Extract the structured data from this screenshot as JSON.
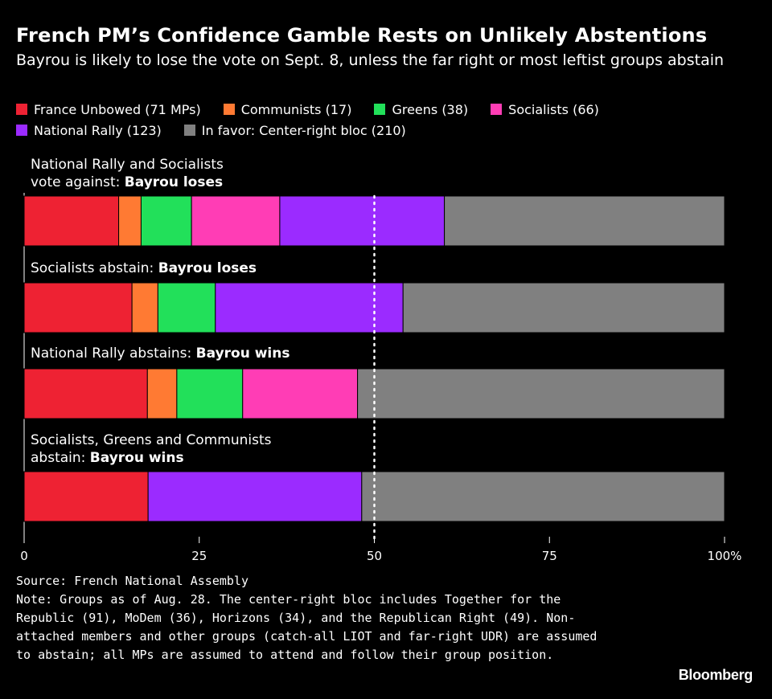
{
  "header": {
    "title": "French PM’s Confidence Gamble Rests on Unlikely Abstentions",
    "subtitle": "Bayrou is likely to lose the vote on Sept. 8, unless the far right or most leftist groups abstain"
  },
  "legend": [
    {
      "label": "France Unbowed (71 MPs)",
      "color": "#ee2233"
    },
    {
      "label": "Communists (17)",
      "color": "#ff7a33"
    },
    {
      "label": "Greens (38)",
      "color": "#22e05a"
    },
    {
      "label": "Socialists (66)",
      "color": "#ff3db5"
    },
    {
      "label": "National Rally (123)",
      "color": "#9b2bff"
    },
    {
      "label": "In favor: Center-right bloc (210)",
      "color": "#808080"
    }
  ],
  "scenarios": [
    {
      "text": "National Rally and Socialists vote against: ",
      "line1": "National Rally and Socialists",
      "line2": "vote against: ",
      "outcome": "Bayrou loses"
    },
    {
      "text": "Socialists abstain: ",
      "outcome": "Bayrou loses"
    },
    {
      "text": "National Rally abstains: ",
      "outcome": "Bayrou wins"
    },
    {
      "line1": "Socialists, Greens and Communists",
      "line2": "abstain: ",
      "outcome": "Bayrou wins"
    }
  ],
  "chart_data": {
    "type": "bar",
    "orientation": "horizontal",
    "stacked": true,
    "unit": "percent",
    "xlim": [
      0,
      100
    ],
    "xticks": [
      "0",
      "25",
      "50",
      "75",
      "100%"
    ],
    "reference_line": 50,
    "categories": [
      "National Rally and Socialists vote against: Bayrou loses",
      "Socialists abstain: Bayrou loses",
      "National Rally abstains: Bayrou wins",
      "Socialists, Greens and Communists abstain: Bayrou wins"
    ],
    "series": [
      {
        "name": "France Unbowed (71 MPs)",
        "color": "#ee2233",
        "values": [
          13.5,
          15.4,
          17.6,
          17.7
        ]
      },
      {
        "name": "Communists (17)",
        "color": "#ff7a33",
        "values": [
          3.2,
          3.7,
          4.2,
          0
        ]
      },
      {
        "name": "Greens (38)",
        "color": "#22e05a",
        "values": [
          7.2,
          8.2,
          9.4,
          0
        ]
      },
      {
        "name": "Socialists (66)",
        "color": "#ff3db5",
        "values": [
          12.6,
          0,
          16.4,
          0
        ]
      },
      {
        "name": "National Rally (123)",
        "color": "#9b2bff",
        "values": [
          23.5,
          26.8,
          0,
          30.5
        ]
      },
      {
        "name": "In favor: Center-right bloc (210)",
        "color": "#808080",
        "values": [
          40.0,
          45.9,
          52.4,
          51.8
        ]
      }
    ]
  },
  "footnote": {
    "source": "Source: French National Assembly",
    "note": "Note: Groups as of Aug. 28. The center-right bloc includes Together for the Republic (91), MoDem (36), Horizons (34), and the Republican Right (49). Non-attached members and other groups (catch-all LIOT and far-right UDR) are assumed to abstain; all MPs are assumed to attend and follow their group position."
  },
  "brand": "Bloomberg"
}
